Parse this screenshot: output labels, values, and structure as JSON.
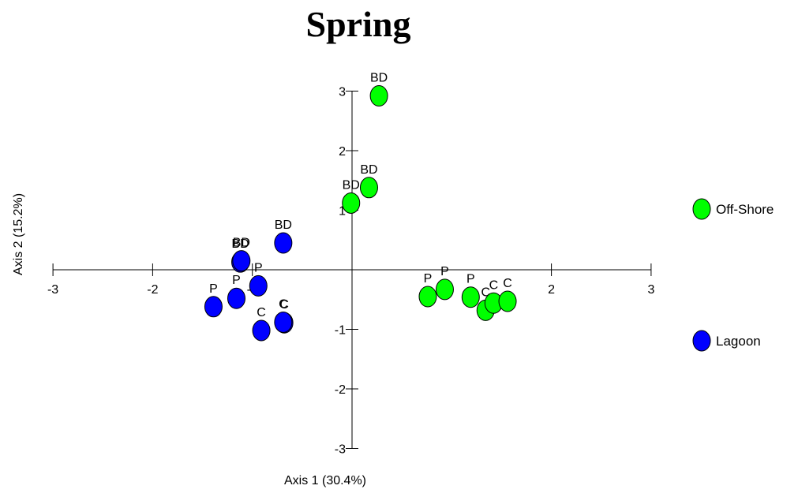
{
  "chart_data": {
    "type": "scatter",
    "title": "Spring",
    "xlabel": "Axis 1 (30.4%)",
    "ylabel": "Axis 2 (15.2%)",
    "xlim": [
      -3,
      3
    ],
    "ylim": [
      -3,
      3
    ],
    "x_ticks": [
      -3,
      -2,
      -1,
      2,
      3
    ],
    "y_ticks": [
      -3,
      -2,
      -1,
      1,
      2,
      3
    ],
    "grid": false,
    "legend_position": "right",
    "series": [
      {
        "name": "Off-Shore",
        "color": "#00ff00",
        "points": [
          {
            "x": 0.27,
            "y": 2.92,
            "label": "BD"
          },
          {
            "x": 0.17,
            "y": 1.38,
            "label": "BD"
          },
          {
            "x": -0.01,
            "y": 1.12,
            "label": "BD"
          },
          {
            "x": 0.76,
            "y": -0.45,
            "label": "P"
          },
          {
            "x": 0.93,
            "y": -0.33,
            "label": "P"
          },
          {
            "x": 1.19,
            "y": -0.46,
            "label": "P"
          },
          {
            "x": 1.34,
            "y": -0.68,
            "label": "C"
          },
          {
            "x": 1.42,
            "y": -0.56,
            "label": "C"
          },
          {
            "x": 1.56,
            "y": -0.53,
            "label": "C"
          }
        ]
      },
      {
        "name": "Lagoon",
        "color": "#0000ff",
        "points": [
          {
            "x": -0.69,
            "y": 0.45,
            "label": "BD"
          },
          {
            "x": -1.12,
            "y": 0.13,
            "label": "BD"
          },
          {
            "x": -1.11,
            "y": 0.15,
            "label": "BD"
          },
          {
            "x": -0.94,
            "y": -0.27,
            "label": "P"
          },
          {
            "x": -1.16,
            "y": -0.48,
            "label": "P"
          },
          {
            "x": -1.39,
            "y": -0.62,
            "label": "P"
          },
          {
            "x": -0.91,
            "y": -1.02,
            "label": "C"
          },
          {
            "x": -0.68,
            "y": -0.89,
            "label": "C"
          },
          {
            "x": -0.69,
            "y": -0.88,
            "label": "C"
          }
        ]
      }
    ]
  }
}
